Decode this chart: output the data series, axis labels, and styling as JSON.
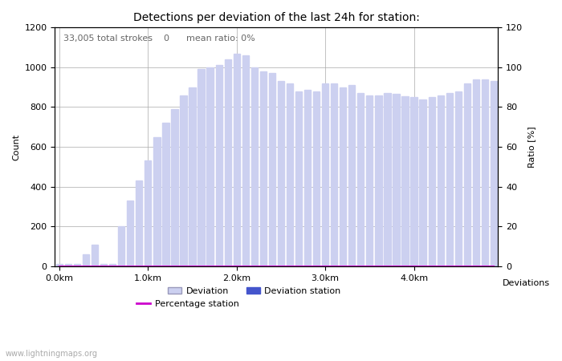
{
  "title": "Detections per deviation of the last 24h for station:",
  "annotation": "33,005 total strokes    0      mean ratio: 0%",
  "xlabel": "Deviations",
  "ylabel_left": "Count",
  "ylabel_right": "Ratio [%]",
  "ylim_left": [
    0,
    1200
  ],
  "ylim_right": [
    0,
    120
  ],
  "yticks_left": [
    0,
    200,
    400,
    600,
    800,
    1000,
    1200
  ],
  "yticks_right": [
    0,
    20,
    40,
    60,
    80,
    100,
    120
  ],
  "xtick_labels": [
    "0.0km",
    "1.0km",
    "2.0km",
    "3.0km",
    "4.0km"
  ],
  "xtick_positions": [
    0,
    10,
    20,
    30,
    40
  ],
  "watermark": "www.lightningmaps.org",
  "bar_color": "#ccd0f0",
  "bar_station_color": "#4455cc",
  "bar_width": 0.75,
  "deviation_bars": [
    10,
    10,
    10,
    60,
    110,
    10,
    10,
    200,
    330,
    430,
    530,
    650,
    720,
    790,
    860,
    900,
    990,
    1000,
    1010,
    1040,
    1070,
    1060,
    1000,
    980,
    970,
    930,
    920,
    880,
    885,
    880,
    920,
    920,
    900,
    910,
    870,
    860,
    860,
    870,
    865,
    855,
    850,
    840,
    850,
    860,
    870,
    880,
    920,
    940,
    940,
    930
  ],
  "station_bars": [
    0,
    0,
    0,
    0,
    0,
    0,
    0,
    0,
    0,
    0,
    0,
    0,
    0,
    0,
    0,
    0,
    0,
    0,
    0,
    0,
    0,
    0,
    0,
    0,
    0,
    0,
    0,
    0,
    0,
    0,
    0,
    0,
    0,
    0,
    0,
    0,
    0,
    0,
    0,
    0,
    0,
    0,
    0,
    0,
    0,
    0,
    0,
    0,
    0,
    0
  ],
  "percentage_line": [
    0,
    0,
    0,
    0,
    0,
    0,
    0,
    0,
    0,
    0,
    0,
    0,
    0,
    0,
    0,
    0,
    0,
    0,
    0,
    0,
    0,
    0,
    0,
    0,
    0,
    0,
    0,
    0,
    0,
    0,
    0,
    0,
    0,
    0,
    0,
    0,
    0,
    0,
    0,
    0,
    0,
    0,
    0,
    0,
    0,
    0,
    0,
    0,
    0,
    0
  ],
  "legend_deviation_label": "Deviation",
  "legend_station_label": "Deviation station",
  "legend_percentage_label": "Percentage station",
  "percentage_line_color": "#cc00cc",
  "background_color": "#ffffff",
  "grid_color": "#aaaaaa",
  "title_fontsize": 10,
  "label_fontsize": 8,
  "tick_fontsize": 8,
  "annotation_fontsize": 8
}
